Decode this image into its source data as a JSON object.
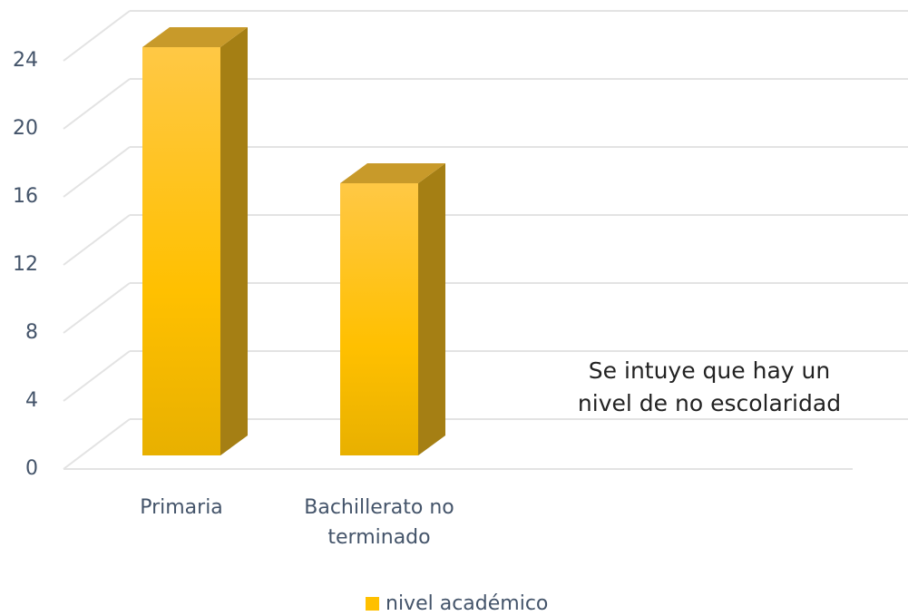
{
  "chart_data": {
    "type": "bar3d",
    "categories": [
      "Primaria",
      "Bachillerato no terminado",
      null,
      null
    ],
    "series": [
      {
        "name": "nivel académico",
        "color": "#ffc000",
        "values": [
          24,
          16,
          null,
          null
        ]
      }
    ],
    "ylim": [
      0,
      24
    ],
    "yticks": [
      0,
      4,
      8,
      12,
      16,
      20,
      24
    ],
    "grid": true,
    "annotation": [
      "Se intuye que hay un",
      "nivel de no escolaridad"
    ],
    "legend": "bottom"
  }
}
